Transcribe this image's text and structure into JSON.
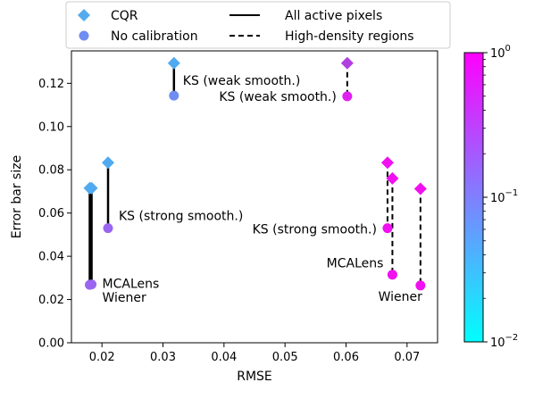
{
  "chart_data": {
    "type": "scatter",
    "xlabel": "RMSE",
    "ylabel": "Error bar size",
    "xlim": [
      0.015,
      0.075
    ],
    "ylim": [
      0.0,
      0.135
    ],
    "xticks": [
      "0.02",
      "0.03",
      "0.04",
      "0.05",
      "0.06",
      "0.07"
    ],
    "yticks": [
      "0.00",
      "0.02",
      "0.04",
      "0.06",
      "0.08",
      "0.10",
      "0.12"
    ],
    "colorbar": {
      "scale": "log",
      "range": [
        0.01,
        1.0
      ],
      "ticks": [
        {
          "value": 1.0,
          "base": "10",
          "exp": "0"
        },
        {
          "value": 0.1,
          "base": "10",
          "exp": "−1"
        },
        {
          "value": 0.01,
          "base": "10",
          "exp": "−2"
        }
      ],
      "cmap_colors": [
        "#00ffff",
        "#ff00ff"
      ]
    },
    "legend": {
      "placement": "top-center",
      "entries": [
        {
          "label": "CQR",
          "marker": "diamond",
          "color": "#55aaee"
        },
        {
          "label": "No calibration",
          "marker": "circle",
          "color": "#6f8cf0"
        },
        {
          "label": "All active pixels",
          "line": "solid"
        },
        {
          "label": "High-density regions",
          "line": "dashed"
        }
      ]
    },
    "pairs": [
      {
        "label": "Wiener",
        "region": "all",
        "rmse": 0.018,
        "cqr": 0.0715,
        "nocal": 0.0268,
        "cqr_color": "#50aaf0",
        "nocal_color": "#9a66f0",
        "line": "solid"
      },
      {
        "label": "MCALens",
        "region": "all",
        "rmse": 0.0183,
        "cqr": 0.0715,
        "nocal": 0.027,
        "cqr_color": "#50aaf0",
        "nocal_color": "#9a66f0",
        "line": "solid"
      },
      {
        "label": "KS (strong smooth.)",
        "region": "all",
        "rmse": 0.021,
        "cqr": 0.0833,
        "nocal": 0.053,
        "cqr_color": "#50aaf0",
        "nocal_color": "#9a66f0",
        "line": "solid"
      },
      {
        "label": "KS (weak smooth.)",
        "region": "all",
        "rmse": 0.0318,
        "cqr": 0.1293,
        "nocal": 0.1143,
        "cqr_color": "#50aaf0",
        "nocal_color": "#6f8cf0",
        "line": "solid"
      },
      {
        "label": "KS (weak smooth.)",
        "region": "high",
        "rmse": 0.0602,
        "cqr": 0.1293,
        "nocal": 0.114,
        "cqr_color": "#b040e0",
        "nocal_color": "#e020f0",
        "line": "dashed"
      },
      {
        "label": "KS (strong smooth.)",
        "region": "high",
        "rmse": 0.0668,
        "cqr": 0.0833,
        "nocal": 0.053,
        "cqr_color": "#f010f0",
        "nocal_color": "#f010f0",
        "line": "dashed"
      },
      {
        "label": "MCALens",
        "region": "high",
        "rmse": 0.0676,
        "cqr": 0.076,
        "nocal": 0.0315,
        "cqr_color": "#f010f0",
        "nocal_color": "#f010f0",
        "line": "dashed"
      },
      {
        "label": "Wiener",
        "region": "high",
        "rmse": 0.0722,
        "cqr": 0.0712,
        "nocal": 0.0265,
        "cqr_color": "#f010f0",
        "nocal_color": "#f010f0",
        "line": "dashed"
      }
    ]
  }
}
